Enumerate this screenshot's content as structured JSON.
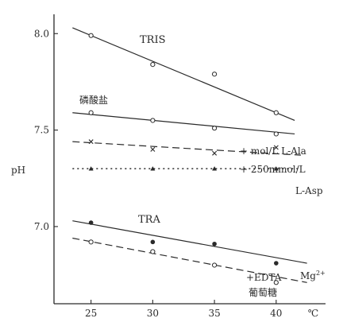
{
  "chart_data": {
    "type": "scatter",
    "title": "",
    "xlabel": "℃",
    "ylabel": "pH",
    "xlim": [
      22,
      44
    ],
    "ylim": [
      6.6,
      8.1
    ],
    "x_ticks": [
      25,
      30,
      35,
      40
    ],
    "y_ticks": [
      {
        "value": 7.0,
        "label": "7.0"
      },
      {
        "value": 7.5,
        "label": "7.5"
      },
      {
        "value": 8.0,
        "label": "8.0"
      }
    ],
    "grid": false,
    "legend": "none",
    "series": [
      {
        "name": "TRIS",
        "marker": "open-circle",
        "line": "solid",
        "x": [
          25,
          30,
          35,
          40
        ],
        "y": [
          7.99,
          7.84,
          7.79,
          7.59
        ],
        "fit": [
          [
            23.5,
            8.03
          ],
          [
            41.5,
            7.55
          ]
        ]
      },
      {
        "name": "磷酸盐",
        "marker": "open-circle",
        "line": "solid",
        "x": [
          25,
          30,
          35,
          40
        ],
        "y": [
          7.59,
          7.55,
          7.51,
          7.48
        ],
        "fit": [
          [
            23.5,
            7.59
          ],
          [
            41.5,
            7.48
          ]
        ]
      },
      {
        "name": "+ mol/L L-Ala",
        "marker": "cross",
        "line": "dashed",
        "x": [
          25,
          30,
          35,
          40
        ],
        "y": [
          7.44,
          7.4,
          7.38,
          7.41
        ],
        "fit": [
          [
            23.5,
            7.44
          ],
          [
            42.0,
            7.37
          ]
        ]
      },
      {
        "name": "+ 250mmol/L",
        "name_line2": "L-Asp",
        "marker": "filled-triangle",
        "line": "dotted",
        "x": [
          25,
          30,
          35,
          40
        ],
        "y": [
          7.3,
          7.3,
          7.3,
          7.3
        ],
        "fit": [
          [
            23.5,
            7.3
          ],
          [
            42.0,
            7.3
          ]
        ]
      },
      {
        "name": "TRA",
        "marker": "filled-circle",
        "line": "solid",
        "x": [
          25,
          30,
          35,
          40
        ],
        "y": [
          7.02,
          6.92,
          6.91,
          6.81
        ],
        "fit": [
          [
            23.5,
            7.03
          ],
          [
            42.5,
            6.81
          ]
        ]
      },
      {
        "name": "+EDTA",
        "name_line2": "葡萄糖",
        "marker": "open-circle",
        "line": "dashed",
        "x": [
          25,
          30,
          35,
          40
        ],
        "y": [
          6.92,
          6.87,
          6.8,
          6.71
        ],
        "fit": [
          [
            23.5,
            6.94
          ],
          [
            42.5,
            6.71
          ]
        ]
      }
    ],
    "annotations": {
      "mg_label": "Mg",
      "mg_superscript": "2+"
    }
  }
}
